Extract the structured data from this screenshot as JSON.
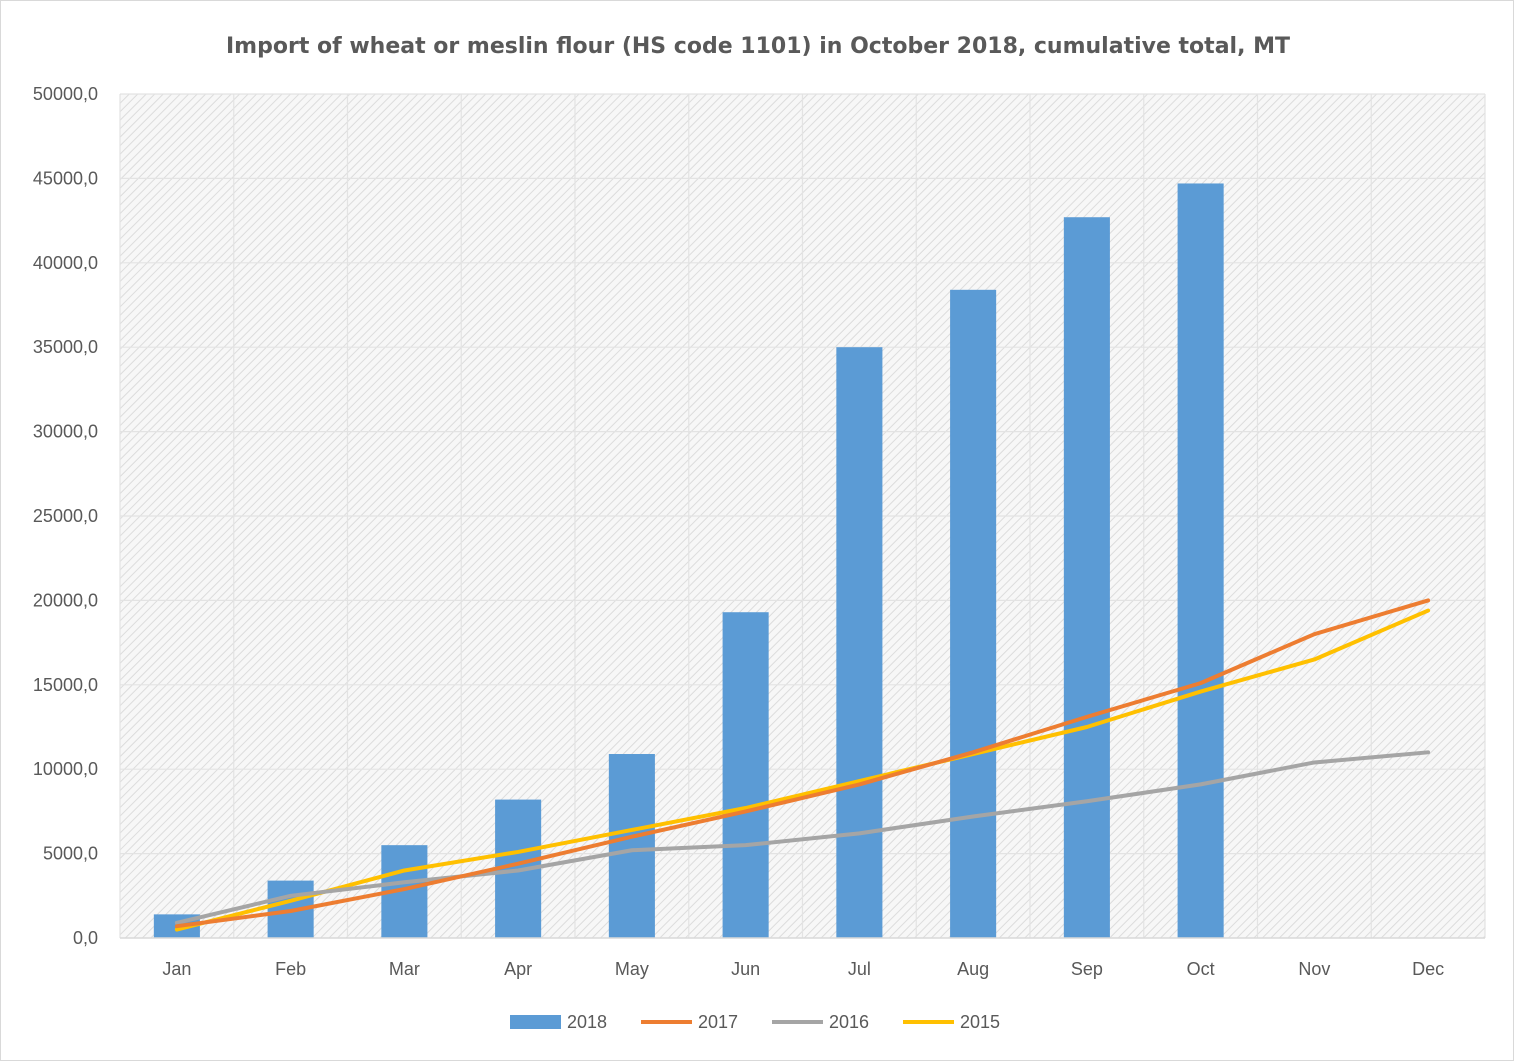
{
  "chart_data": {
    "type": "bar+line",
    "title": "Import of wheat or meslin flour (HS code 1101) in October 2018, cumulative total, MT",
    "xlabel": "",
    "ylabel": "",
    "ylim": [
      0,
      50000
    ],
    "y_ticks": [
      "0,0",
      "5000,0",
      "10000,0",
      "15000,0",
      "20000,0",
      "25000,0",
      "30000,0",
      "35000,0",
      "40000,0",
      "45000,0",
      "50000,0"
    ],
    "y_tick_values": [
      0,
      5000,
      10000,
      15000,
      20000,
      25000,
      30000,
      35000,
      40000,
      45000,
      50000
    ],
    "categories": [
      "Jan",
      "Feb",
      "Mar",
      "Apr",
      "May",
      "Jun",
      "Jul",
      "Aug",
      "Sep",
      "Oct",
      "Nov",
      "Dec"
    ],
    "grid": true,
    "legend_position": "bottom",
    "series": [
      {
        "name": "2018",
        "type": "bar",
        "color": "#5b9bd5",
        "values": [
          1400,
          3400,
          5500,
          8200,
          10900,
          19300,
          35000,
          38400,
          42700,
          44700,
          null,
          null
        ]
      },
      {
        "name": "2017",
        "type": "line",
        "color": "#ed7d31",
        "values": [
          700,
          1600,
          2900,
          4400,
          6000,
          7500,
          9100,
          11000,
          13100,
          15100,
          18000,
          20000
        ]
      },
      {
        "name": "2016",
        "type": "line",
        "color": "#a5a5a5",
        "values": [
          900,
          2500,
          3300,
          4000,
          5200,
          5500,
          6200,
          7200,
          8100,
          9100,
          10400,
          11000
        ]
      },
      {
        "name": "2015",
        "type": "line",
        "color": "#ffc000",
        "values": [
          500,
          2200,
          4000,
          5100,
          6400,
          7700,
          9300,
          10900,
          12500,
          14600,
          16500,
          19400
        ]
      }
    ]
  }
}
